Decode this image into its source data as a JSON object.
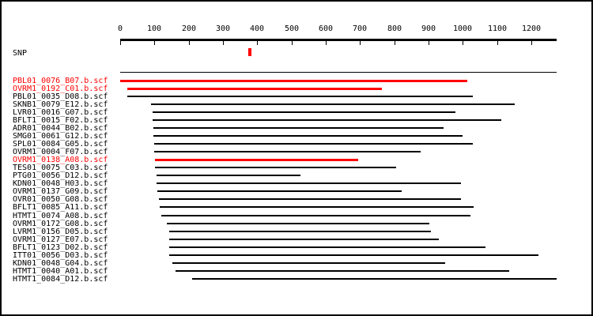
{
  "window": {
    "background": "#ffffff",
    "border_color": "#000000"
  },
  "colors": {
    "highlight": "#ff0000",
    "normal": "#000000"
  },
  "snp_track": {
    "label": "SNP"
  },
  "chart_data": {
    "type": "bar",
    "subtype": "horizontal-read-alignment-ranges",
    "title": "",
    "xlabel": "",
    "ylabel": "",
    "grid": false,
    "legend": false,
    "xlim": [
      0,
      1275
    ],
    "x_ticks": [
      0,
      100,
      200,
      300,
      400,
      500,
      600,
      700,
      800,
      900,
      1000,
      1100,
      1200
    ],
    "snp_position": 378,
    "consensus": {
      "start": 0,
      "end": 1274
    },
    "reads": [
      {
        "name": "PBL01_0076_B07.b.scf",
        "start": 0,
        "end": 1012,
        "highlight": true
      },
      {
        "name": "OVRM1_0192_C01.b.scf",
        "start": 20,
        "end": 763,
        "highlight": true
      },
      {
        "name": "PBL01_0035_D08.b.scf",
        "start": 20,
        "end": 1029,
        "highlight": false
      },
      {
        "name": "SKNB1_0079_E12.b.scf",
        "start": 90,
        "end": 1151,
        "highlight": false
      },
      {
        "name": "LVR01_0016_G07.b.scf",
        "start": 94,
        "end": 977,
        "highlight": false
      },
      {
        "name": "BFLT1_0015_F02.b.scf",
        "start": 94,
        "end": 1112,
        "highlight": false
      },
      {
        "name": "ADR01_0044_B02.b.scf",
        "start": 96,
        "end": 942,
        "highlight": false
      },
      {
        "name": "SMG01_0061_G12.b.scf",
        "start": 96,
        "end": 998,
        "highlight": false
      },
      {
        "name": "SPL01_0084_G05.b.scf",
        "start": 99,
        "end": 1028,
        "highlight": false
      },
      {
        "name": "OVRM1_0004_F07.b.scf",
        "start": 99,
        "end": 876,
        "highlight": false
      },
      {
        "name": "OVRM1_0138_A08.b.scf",
        "start": 102,
        "end": 694,
        "highlight": true
      },
      {
        "name": "TES01_0075_C03.b.scf",
        "start": 102,
        "end": 805,
        "highlight": false
      },
      {
        "name": "PTG01_0056_D12.b.scf",
        "start": 106,
        "end": 525,
        "highlight": false
      },
      {
        "name": "KDN01_0048_H03.b.scf",
        "start": 106,
        "end": 994,
        "highlight": false
      },
      {
        "name": "OVRM1_0137_G09.b.scf",
        "start": 109,
        "end": 823,
        "highlight": false
      },
      {
        "name": "OVR01_0050_G08.b.scf",
        "start": 113,
        "end": 995,
        "highlight": false
      },
      {
        "name": "BFLT1_0085_A11.b.scf",
        "start": 115,
        "end": 1031,
        "highlight": false
      },
      {
        "name": "HTMT1_0074_A08.b.scf",
        "start": 119,
        "end": 1021,
        "highlight": false
      },
      {
        "name": "OVRM1_0172_G08.b.scf",
        "start": 136,
        "end": 902,
        "highlight": false
      },
      {
        "name": "LVRM1_0156_D05.b.scf",
        "start": 144,
        "end": 907,
        "highlight": false
      },
      {
        "name": "OVRM1_0127_E07.b.scf",
        "start": 144,
        "end": 931,
        "highlight": false
      },
      {
        "name": "BFLT1_0123_D02.b.scf",
        "start": 144,
        "end": 1066,
        "highlight": false
      },
      {
        "name": "ITT01_0056_D03.b.scf",
        "start": 144,
        "end": 1221,
        "highlight": false
      },
      {
        "name": "KDN01_0048_G04.b.scf",
        "start": 152,
        "end": 949,
        "highlight": false
      },
      {
        "name": "HTMT1_0040_A01.b.scf",
        "start": 162,
        "end": 1136,
        "highlight": false
      },
      {
        "name": "HTMT1_0084_D12.b.scf",
        "start": 210,
        "end": 1275,
        "highlight": false
      }
    ]
  }
}
